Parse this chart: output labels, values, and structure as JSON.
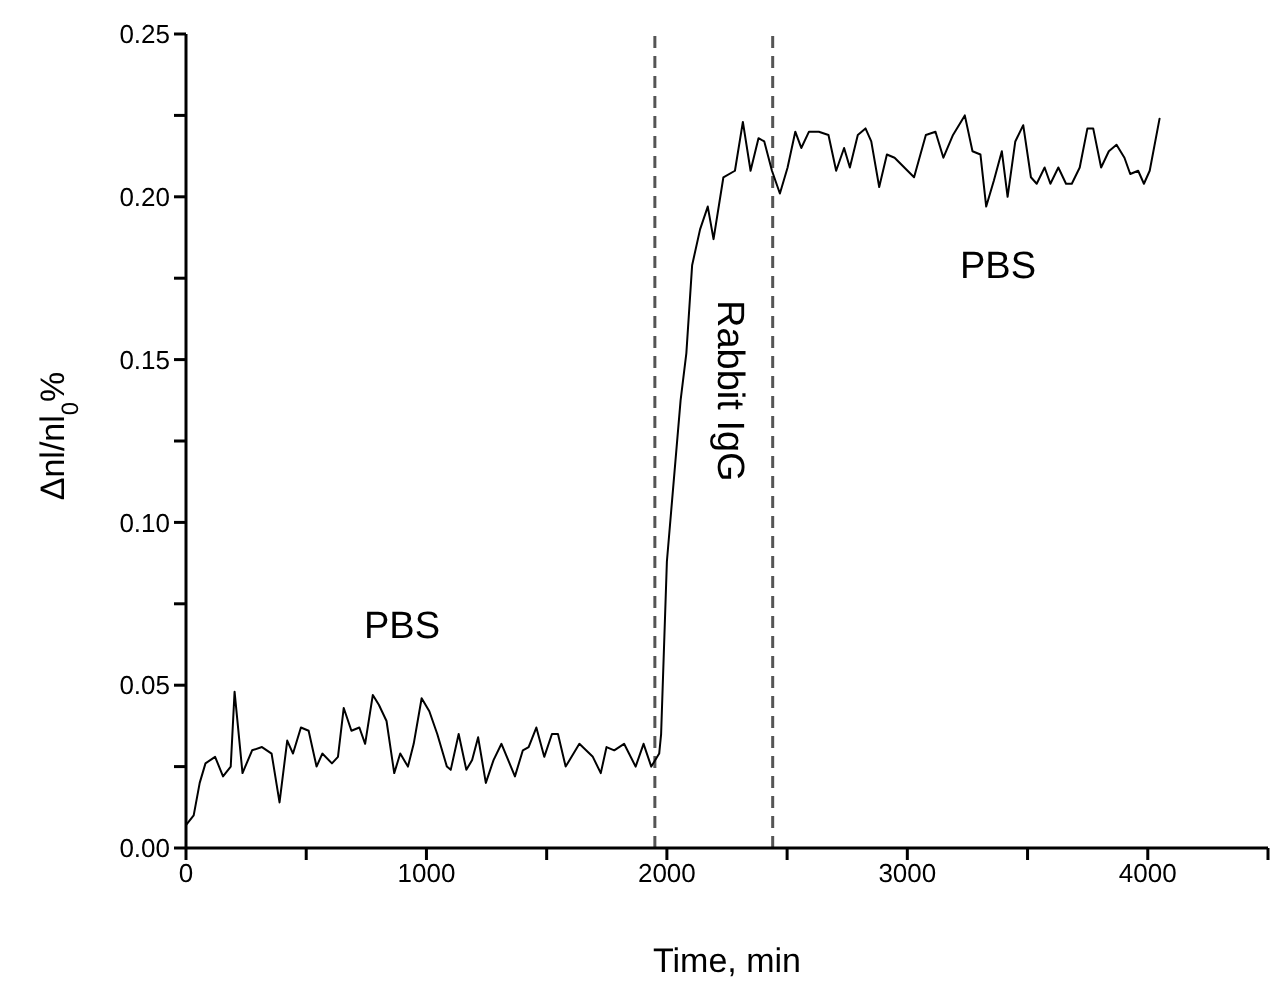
{
  "chart_data": {
    "type": "line",
    "xlabel": "Time, min",
    "ylabel": "Δnl/nl$_{0}$%",
    "xlim": [
      0,
      4500
    ],
    "xticks": [
      0,
      {
        "value": 500,
        "label": null
      },
      1000,
      {
        "value": 1500,
        "label": null
      },
      2000,
      {
        "value": 2500,
        "label": null
      },
      3000,
      {
        "value": 3500,
        "label": null
      },
      4000,
      {
        "value": 4500,
        "label": null
      }
    ],
    "ylim": [
      0,
      0.25
    ],
    "yticks": [
      "0.00",
      {
        "value": 0.025,
        "label": null
      },
      {
        "value": 0.05,
        "label": "0.05"
      },
      {
        "value": 0.075,
        "label": null
      },
      {
        "value": 0.1,
        "label": "0.10"
      },
      {
        "value": 0.125,
        "label": null
      },
      {
        "value": 0.15,
        "label": "0.15"
      },
      {
        "value": 0.175,
        "label": null
      },
      {
        "value": 0.2,
        "label": "0.20"
      },
      {
        "value": 0.225,
        "label": null
      },
      {
        "value": 0.25,
        "label": "0.25"
      }
    ],
    "grid": false,
    "legend": false,
    "marker": "none",
    "line_style": "solid",
    "series": [
      {
        "color": "#000000",
        "x": [
          0,
          32,
          57,
          81,
          121,
          154,
          186,
          202,
          235,
          275,
          316,
          356,
          389,
          421,
          445,
          478,
          510,
          543,
          567,
          607,
          632,
          656,
          688,
          721,
          745,
          777,
          802,
          834,
          866,
          891,
          923,
          947,
          980,
          1012,
          1045,
          1085,
          1101,
          1134,
          1166,
          1190,
          1215,
          1247,
          1279,
          1312,
          1368,
          1401,
          1425,
          1457,
          1490,
          1522,
          1547,
          1579,
          1636,
          1692,
          1725,
          1749,
          1781,
          1822,
          1870,
          1903,
          1935,
          1968,
          1976,
          2000,
          2057,
          2081,
          2105,
          2138,
          2170,
          2194,
          2235,
          2283,
          2316,
          2348,
          2381,
          2405,
          2437,
          2470,
          2502,
          2534,
          2559,
          2591,
          2632,
          2672,
          2704,
          2737,
          2761,
          2794,
          2826,
          2850,
          2883,
          2915,
          2947,
          3028,
          3077,
          3117,
          3150,
          3190,
          3239,
          3271,
          3304,
          3328,
          3360,
          3393,
          3417,
          3449,
          3482,
          3514,
          3538,
          3571,
          3595,
          3628,
          3660,
          3684,
          3717,
          3749,
          3773,
          3806,
          3838,
          3870,
          3903,
          3927,
          3960,
          3984,
          4008,
          4049
        ],
        "values": [
          0.007,
          0.01,
          0.02,
          0.026,
          0.028,
          0.022,
          0.025,
          0.048,
          0.023,
          0.03,
          0.031,
          0.029,
          0.014,
          0.033,
          0.029,
          0.037,
          0.036,
          0.025,
          0.029,
          0.026,
          0.028,
          0.043,
          0.036,
          0.037,
          0.032,
          0.047,
          0.044,
          0.039,
          0.023,
          0.029,
          0.025,
          0.032,
          0.046,
          0.042,
          0.035,
          0.025,
          0.024,
          0.035,
          0.024,
          0.027,
          0.034,
          0.02,
          0.027,
          0.032,
          0.022,
          0.03,
          0.031,
          0.037,
          0.028,
          0.035,
          0.035,
          0.025,
          0.032,
          0.028,
          0.023,
          0.031,
          0.03,
          0.032,
          0.025,
          0.032,
          0.025,
          0.029,
          0.035,
          0.088,
          0.1375,
          0.152,
          0.179,
          0.19,
          0.197,
          0.187,
          0.206,
          0.208,
          0.223,
          0.208,
          0.218,
          0.217,
          0.208,
          0.201,
          0.209,
          0.22,
          0.215,
          0.22,
          0.22,
          0.219,
          0.208,
          0.215,
          0.209,
          0.219,
          0.221,
          0.217,
          0.203,
          0.213,
          0.212,
          0.206,
          0.219,
          0.22,
          0.212,
          0.219,
          0.225,
          0.214,
          0.213,
          0.197,
          0.205,
          0.214,
          0.2,
          0.217,
          0.222,
          0.206,
          0.204,
          0.209,
          0.204,
          0.209,
          0.204,
          0.204,
          0.209,
          0.221,
          0.221,
          0.209,
          0.214,
          0.216,
          0.212,
          0.207,
          0.208,
          0.204,
          0.208,
          0.224
        ]
      }
    ],
    "ref_lines": [
      {
        "axis": "x",
        "value": 1950,
        "color": "#555555",
        "line_style": "dashed"
      },
      {
        "axis": "x",
        "value": 2440,
        "color": "#555555",
        "line_style": "dashed"
      }
    ],
    "annotations": [
      "PBS",
      "Rabbit IgG",
      "PBS"
    ]
  }
}
